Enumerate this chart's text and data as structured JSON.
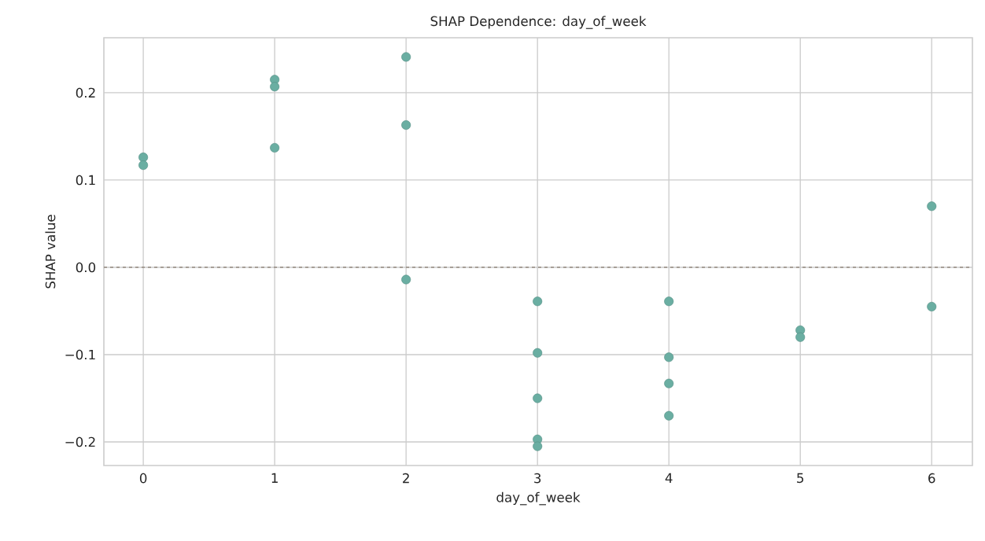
{
  "chart_data": {
    "type": "scatter",
    "title": "SHAP Dependence: day_of_week",
    "xlabel": "day_of_week",
    "ylabel": "SHAP value",
    "x": [
      0,
      0,
      1,
      1,
      1,
      2,
      2,
      2,
      3,
      3,
      3,
      3,
      3,
      4,
      4,
      4,
      4,
      5,
      5,
      6,
      6
    ],
    "values": [
      0.126,
      0.117,
      0.215,
      0.207,
      0.137,
      0.241,
      0.163,
      -0.014,
      -0.039,
      -0.098,
      -0.15,
      -0.197,
      -0.205,
      -0.039,
      -0.103,
      -0.133,
      -0.17,
      -0.072,
      -0.08,
      0.07,
      -0.045
    ],
    "color": "#6aaea2",
    "marker": "circle",
    "grid": true,
    "xlim": [
      -0.3,
      6.31
    ],
    "ylim": [
      -0.227,
      0.263
    ],
    "xticks": [
      0,
      1,
      2,
      3,
      4,
      5,
      6
    ],
    "yticks": [
      {
        "value": -0.2,
        "label": "−0.2"
      },
      {
        "value": -0.1,
        "label": "−0.1"
      },
      {
        "value": 0.0,
        "label": "0.0"
      },
      {
        "value": 0.1,
        "label": "0.1"
      },
      {
        "value": 0.2,
        "label": "0.2"
      }
    ],
    "ref_lines": [
      {
        "axis": "y",
        "value": 0,
        "color": "#9e958c",
        "line_style": "dashed"
      }
    ]
  }
}
